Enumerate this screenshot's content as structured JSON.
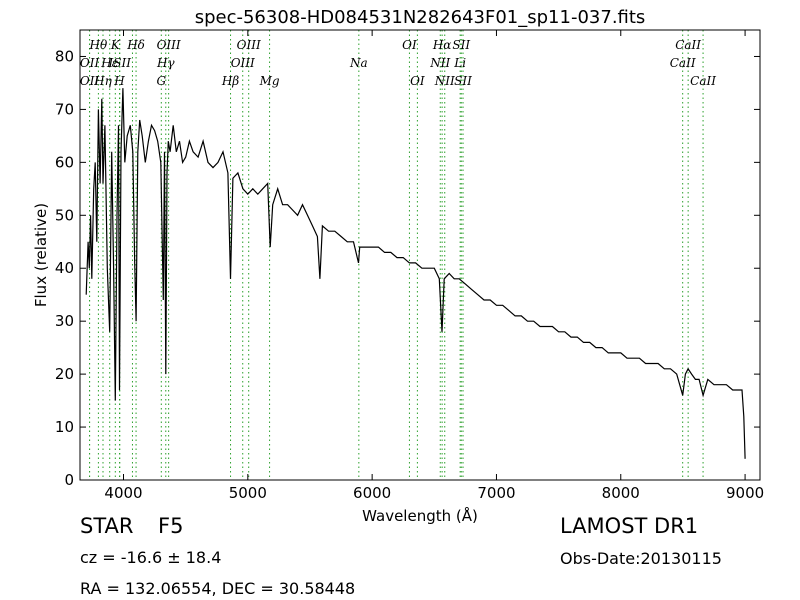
{
  "chart_data": {
    "type": "line",
    "title": "spec-56308-HD084531N282643F01_sp11-037.fits",
    "xlabel": "Wavelength (Å)",
    "ylabel": "Flux (relative)",
    "xlim": [
      3650,
      9120
    ],
    "ylim": [
      0,
      85
    ],
    "xticks": [
      4000,
      5000,
      6000,
      7000,
      8000,
      9000
    ],
    "yticks": [
      0,
      10,
      20,
      30,
      40,
      50,
      60,
      70,
      80
    ],
    "grid": false,
    "legend": "none",
    "line_color": "#000000",
    "marker_color": "#2ca02c",
    "series": [
      {
        "x": [
          3700,
          3715,
          3725,
          3735,
          3745,
          3760,
          3772,
          3785,
          3798,
          3812,
          3825,
          3835,
          3850,
          3870,
          3889,
          3905,
          3920,
          3934,
          3948,
          3960,
          3968,
          3980,
          3995,
          4010,
          4030,
          4055,
          4075,
          4090,
          4101,
          4115,
          4130,
          4150,
          4175,
          4200,
          4225,
          4250,
          4275,
          4300,
          4320,
          4330,
          4340,
          4350,
          4360,
          4375,
          4400,
          4425,
          4450,
          4475,
          4500,
          4530,
          4560,
          4600,
          4640,
          4680,
          4720,
          4760,
          4800,
          4840,
          4861,
          4880,
          4920,
          4960,
          5000,
          5040,
          5080,
          5120,
          5160,
          5180,
          5200,
          5240,
          5280,
          5320,
          5360,
          5400,
          5440,
          5480,
          5520,
          5560,
          5580,
          5600,
          5650,
          5700,
          5750,
          5800,
          5850,
          5890,
          5900,
          5950,
          6000,
          6050,
          6100,
          6150,
          6200,
          6250,
          6300,
          6350,
          6400,
          6450,
          6500,
          6540,
          6562,
          6580,
          6620,
          6660,
          6700,
          6750,
          6800,
          6850,
          6900,
          6950,
          7000,
          7050,
          7100,
          7150,
          7200,
          7250,
          7300,
          7350,
          7400,
          7450,
          7500,
          7550,
          7600,
          7650,
          7700,
          7750,
          7800,
          7850,
          7900,
          7950,
          8000,
          8050,
          8100,
          8150,
          8200,
          8250,
          8300,
          8350,
          8400,
          8450,
          8498,
          8520,
          8542,
          8570,
          8600,
          8630,
          8662,
          8700,
          8750,
          8800,
          8850,
          8900,
          8950,
          8975,
          8990,
          9000
        ],
        "y": [
          35,
          45,
          40,
          50,
          38,
          55,
          60,
          45,
          70,
          56,
          72,
          56,
          67,
          40,
          28,
          62,
          40,
          15,
          50,
          67,
          17,
          62,
          74,
          60,
          65,
          67,
          62,
          41,
          30,
          62,
          68,
          65,
          60,
          64,
          67,
          66,
          64,
          60,
          34,
          62,
          20,
          58,
          64,
          62,
          67,
          62,
          64,
          60,
          61,
          64,
          62,
          61,
          64,
          60,
          59,
          60,
          62,
          58,
          38,
          57,
          58,
          55,
          54,
          55,
          54,
          55,
          56,
          44,
          52,
          55,
          52,
          52,
          51,
          50,
          52,
          50,
          48,
          46,
          38,
          48,
          47,
          47,
          46,
          45,
          45,
          41,
          44,
          44,
          44,
          44,
          43,
          43,
          42,
          42,
          41,
          41,
          40,
          40,
          40,
          38,
          28,
          38,
          39,
          38,
          38,
          37,
          36,
          35,
          34,
          34,
          33,
          33,
          32,
          31,
          31,
          30,
          30,
          29,
          29,
          29,
          28,
          28,
          27,
          27,
          26,
          26,
          25,
          25,
          24,
          24,
          24,
          23,
          23,
          23,
          22,
          22,
          22,
          21,
          21,
          20,
          16,
          20,
          21,
          20,
          19,
          19,
          16,
          19,
          18,
          18,
          18,
          17,
          17,
          17,
          12,
          4
        ]
      }
    ],
    "lines": [
      {
        "x": 3727,
        "label": "OII",
        "row": 1
      },
      {
        "x": 3727,
        "label": "OII",
        "row": 2
      },
      {
        "x": 3798,
        "label": "Hθ",
        "row": 0
      },
      {
        "x": 3835,
        "label": "Hη",
        "row": 2
      },
      {
        "x": 3889,
        "label": "Hε",
        "row": 1
      },
      {
        "x": 3934,
        "label": "K",
        "row": 0
      },
      {
        "x": 3968,
        "label": "H",
        "row": 2
      },
      {
        "x": 3970,
        "label": "ISII",
        "row": 1
      },
      {
        "x": 4072,
        "label": "",
        "row": 1
      },
      {
        "x": 4101,
        "label": "Hδ",
        "row": 0
      },
      {
        "x": 4304,
        "label": "G",
        "row": 2
      },
      {
        "x": 4340,
        "label": "Hγ",
        "row": 1
      },
      {
        "x": 4363,
        "label": "OIII",
        "row": 0
      },
      {
        "x": 4861,
        "label": "Hβ",
        "row": 2
      },
      {
        "x": 4959,
        "label": "OIII",
        "row": 1
      },
      {
        "x": 5007,
        "label": "OIII",
        "row": 0
      },
      {
        "x": 5175,
        "label": "Mg",
        "row": 2
      },
      {
        "x": 5893,
        "label": "Na",
        "row": 1
      },
      {
        "x": 6300,
        "label": "OI",
        "row": 0
      },
      {
        "x": 6364,
        "label": "OI",
        "row": 2
      },
      {
        "x": 6548,
        "label": "NII",
        "row": 1
      },
      {
        "x": 6563,
        "label": "Hα",
        "row": 0
      },
      {
        "x": 6584,
        "label": "NII",
        "row": 2
      },
      {
        "x": 6708,
        "label": "Li",
        "row": 1
      },
      {
        "x": 6717,
        "label": "SII",
        "row": 0
      },
      {
        "x": 6731,
        "label": "SII",
        "row": 2
      },
      {
        "x": 8498,
        "label": "CaII",
        "row": 1
      },
      {
        "x": 8542,
        "label": "CaII",
        "row": 0
      },
      {
        "x": 8662,
        "label": "CaII",
        "row": 2
      }
    ]
  },
  "info": {
    "class_label": "STAR",
    "subclass": "F5",
    "cz": "cz = -16.6 ± 18.4",
    "coords": "RA = 132.06554, DEC = 30.58448",
    "survey": "LAMOST DR1",
    "obs_date": "Obs-Date:20130115"
  }
}
